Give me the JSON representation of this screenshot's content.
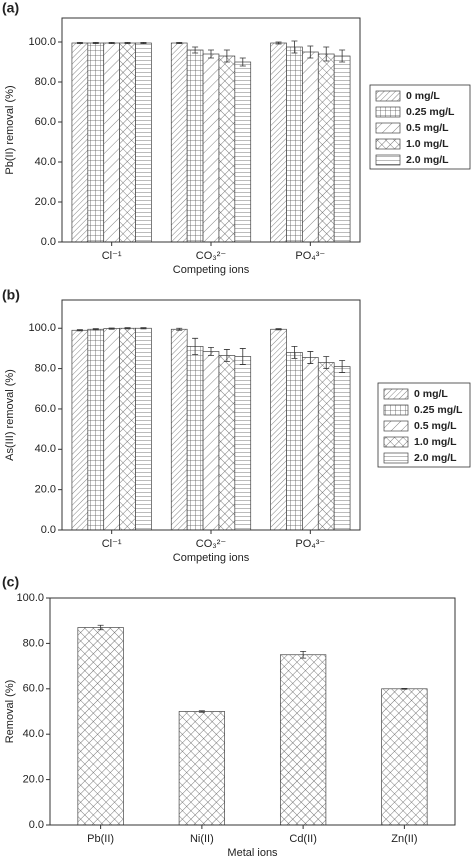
{
  "chart_data": [
    {
      "type": "grouped-bar",
      "label": "(a)",
      "x_label": "Competing ions",
      "y_label": "Pb(II) removal (%)",
      "categories": [
        "Cl⁻¹",
        "CO₃²⁻",
        "PO₄³⁻"
      ],
      "ylim": [
        0,
        112
      ],
      "yticks": [
        {
          "value": 0,
          "label": "0.0"
        },
        {
          "value": 20,
          "label": "20.0"
        },
        {
          "value": 40,
          "label": "40.0"
        },
        {
          "value": 60,
          "label": "60.0"
        },
        {
          "value": 80,
          "label": "80.0"
        },
        {
          "value": 100,
          "label": "100.0"
        }
      ],
      "legend": "right",
      "series": [
        {
          "name": "0 mg/L",
          "pattern": "diagonal",
          "values": [
            99.5,
            99.5,
            99.5
          ],
          "errors": [
            0.3,
            0.3,
            0.5
          ]
        },
        {
          "name": "0.25 mg/L",
          "pattern": "grid",
          "values": [
            99.5,
            96,
            97.5
          ],
          "errors": [
            0.3,
            1.5,
            3
          ]
        },
        {
          "name": "0.5 mg/L",
          "pattern": "diagonal-sparse",
          "values": [
            99.5,
            94,
            95
          ],
          "errors": [
            0.3,
            2,
            3
          ]
        },
        {
          "name": "1.0 mg/L",
          "pattern": "crosshatch",
          "values": [
            99.5,
            93,
            94
          ],
          "errors": [
            0.3,
            3,
            3.5
          ]
        },
        {
          "name": "2.0 mg/L",
          "pattern": "horizontal",
          "values": [
            99.5,
            90,
            93
          ],
          "errors": [
            0.3,
            2,
            3
          ]
        }
      ]
    },
    {
      "type": "grouped-bar",
      "label": "(b)",
      "x_label": "Competing ions",
      "y_label": "As(III) removal (%)",
      "categories": [
        "Cl⁻¹",
        "CO₃²⁻",
        "PO₄³⁻"
      ],
      "ylim": [
        0,
        114
      ],
      "yticks": [
        {
          "value": 0,
          "label": "0.0"
        },
        {
          "value": 20,
          "label": "20.0"
        },
        {
          "value": 40,
          "label": "40.0"
        },
        {
          "value": 60,
          "label": "60.0"
        },
        {
          "value": 80,
          "label": "80.0"
        },
        {
          "value": 100,
          "label": "100.0"
        }
      ],
      "legend": "right",
      "series": [
        {
          "name": "0 mg/L",
          "pattern": "diagonal",
          "values": [
            99,
            99.5,
            99.5
          ],
          "errors": [
            0.3,
            0.5,
            0.3
          ]
        },
        {
          "name": "0.25 mg/L",
          "pattern": "grid",
          "values": [
            99.5,
            91,
            88
          ],
          "errors": [
            0.3,
            4,
            3
          ]
        },
        {
          "name": "0.5 mg/L",
          "pattern": "diagonal-sparse",
          "values": [
            99.8,
            88.5,
            85.5
          ],
          "errors": [
            0.3,
            2,
            3
          ]
        },
        {
          "name": "1.0 mg/L",
          "pattern": "crosshatch",
          "values": [
            100,
            86.5,
            83
          ],
          "errors": [
            0.3,
            3,
            3
          ]
        },
        {
          "name": "2.0 mg/L",
          "pattern": "horizontal",
          "values": [
            100,
            86,
            81
          ],
          "errors": [
            0.3,
            4,
            3
          ]
        }
      ]
    },
    {
      "type": "bar",
      "label": "(c)",
      "x_label": "Metal ions",
      "y_label": "Removal (%)",
      "categories": [
        "Pb(II)",
        "Ni(II)",
        "Cd(II)",
        "Zn(II)"
      ],
      "values": [
        87,
        50,
        75,
        60
      ],
      "errors": [
        1,
        0.3,
        1.5,
        0.2
      ],
      "pattern": "crosshatch",
      "ylim": [
        0,
        100
      ],
      "yticks": [
        {
          "value": 0,
          "label": "0.0"
        },
        {
          "value": 20,
          "label": "20.0"
        },
        {
          "value": 40,
          "label": "40.0"
        },
        {
          "value": 60,
          "label": "60.0"
        },
        {
          "value": 80,
          "label": "80.0"
        },
        {
          "value": 100,
          "label": "100.0"
        }
      ]
    }
  ]
}
